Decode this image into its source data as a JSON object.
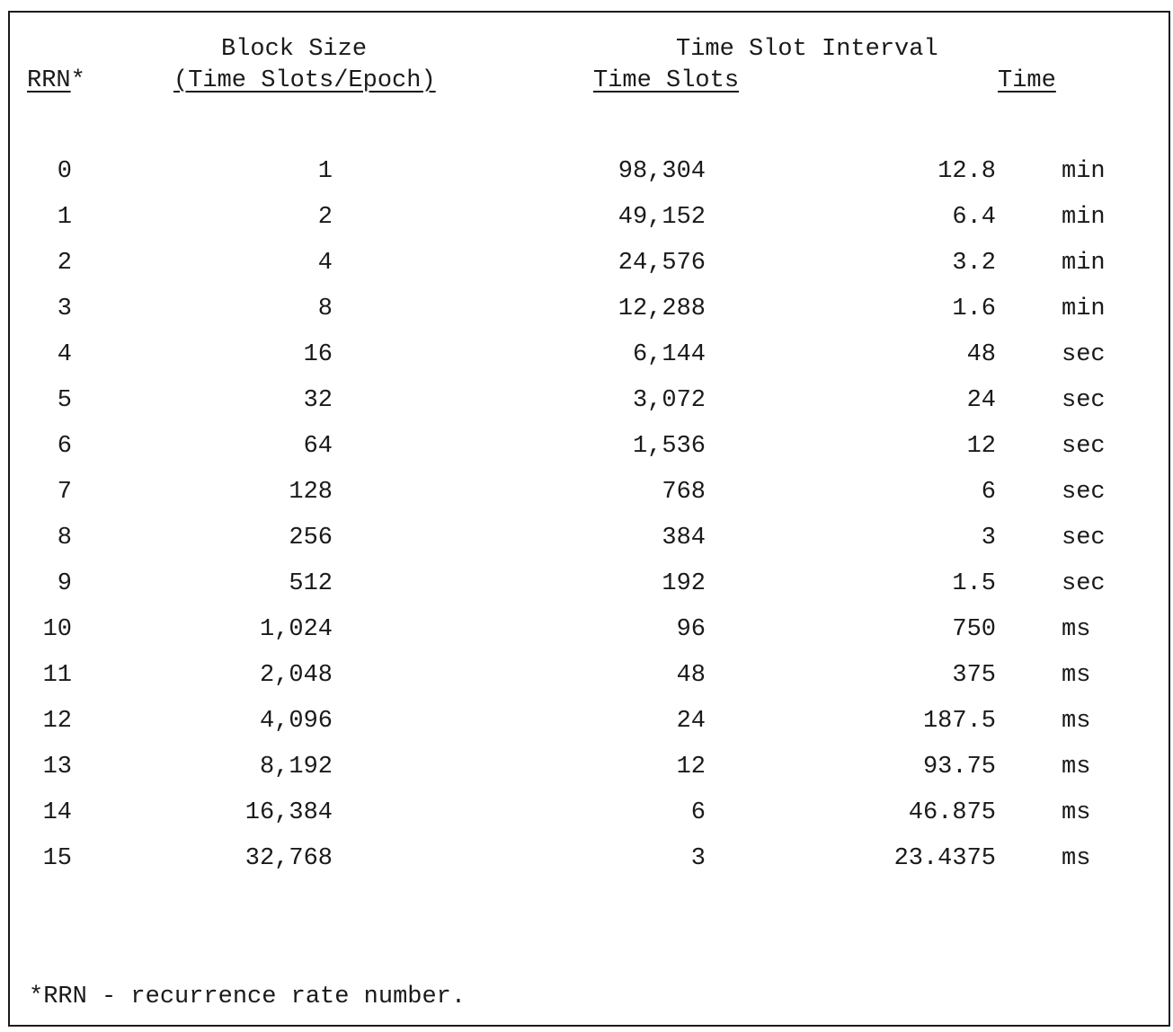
{
  "header": {
    "block_size_line1": "Block Size",
    "block_size_line2": "(Time Slots/Epoch)",
    "interval_group": "Time Slot Interval",
    "rrn": "RRN",
    "rrn_mark": "*",
    "time_slots": "Time Slots",
    "time": "Time"
  },
  "rows": [
    {
      "rrn": "0",
      "block": "1",
      "slots": "98,304",
      "time": "12.8",
      "unit": "min"
    },
    {
      "rrn": "1",
      "block": "2",
      "slots": "49,152",
      "time": "6.4",
      "unit": "min"
    },
    {
      "rrn": "2",
      "block": "4",
      "slots": "24,576",
      "time": "3.2",
      "unit": "min"
    },
    {
      "rrn": "3",
      "block": "8",
      "slots": "12,288",
      "time": "1.6",
      "unit": "min"
    },
    {
      "rrn": "4",
      "block": "16",
      "slots": "6,144",
      "time": "48",
      "unit": "sec"
    },
    {
      "rrn": "5",
      "block": "32",
      "slots": "3,072",
      "time": "24",
      "unit": "sec"
    },
    {
      "rrn": "6",
      "block": "64",
      "slots": "1,536",
      "time": "12",
      "unit": "sec"
    },
    {
      "rrn": "7",
      "block": "128",
      "slots": "768",
      "time": "6",
      "unit": "sec"
    },
    {
      "rrn": "8",
      "block": "256",
      "slots": "384",
      "time": "3",
      "unit": "sec"
    },
    {
      "rrn": "9",
      "block": "512",
      "slots": "192",
      "time": "1.5",
      "unit": "sec"
    },
    {
      "rrn": "10",
      "block": "1,024",
      "slots": "96",
      "time": "750",
      "unit": "ms"
    },
    {
      "rrn": "11",
      "block": "2,048",
      "slots": "48",
      "time": "375",
      "unit": "ms"
    },
    {
      "rrn": "12",
      "block": "4,096",
      "slots": "24",
      "time": "187.5",
      "unit": "ms"
    },
    {
      "rrn": "13",
      "block": "8,192",
      "slots": "12",
      "time": "93.75",
      "unit": "ms"
    },
    {
      "rrn": "14",
      "block": "16,384",
      "slots": "6",
      "time": "46.875",
      "unit": "ms"
    },
    {
      "rrn": "15",
      "block": "32,768",
      "slots": "3",
      "time": "23.4375",
      "unit": "ms"
    }
  ],
  "footnote": "*RRN - recurrence rate number."
}
